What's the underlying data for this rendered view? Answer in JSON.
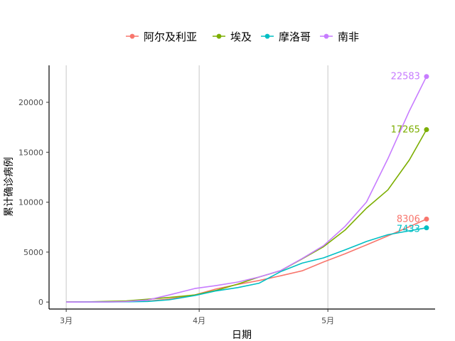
{
  "chart_data": {
    "type": "line",
    "xlabel": "日期",
    "ylabel": "累计确诊病例",
    "x_ticks": [
      "3月",
      "4月",
      "5月"
    ],
    "y_ticks": [
      0,
      5000,
      10000,
      15000,
      20000
    ],
    "ylim": [
      -700,
      23700
    ],
    "xlim": [
      "2020-02-26",
      "2020-05-26"
    ],
    "legend_position": "top",
    "grid": "vertical only",
    "x": [
      "2020-03-01",
      "2020-03-05",
      "2020-03-10",
      "2020-03-15",
      "2020-03-20",
      "2020-03-25",
      "2020-03-31",
      "2020-04-05",
      "2020-04-10",
      "2020-04-15",
      "2020-04-20",
      "2020-04-25",
      "2020-04-30",
      "2020-05-05",
      "2020-05-10",
      "2020-05-15",
      "2020-05-20",
      "2020-05-24"
    ],
    "series": [
      {
        "name": "阿尔及利亚",
        "color": "#F8766D",
        "values": [
          1,
          17,
          20,
          48,
          90,
          302,
          716,
          1320,
          1761,
          2160,
          2629,
          3127,
          4006,
          4838,
          5723,
          6629,
          7542,
          8306
        ],
        "end_label": "8306"
      },
      {
        "name": "埃及",
        "color": "#7CAE00",
        "values": [
          2,
          3,
          59,
          110,
          285,
          456,
          710,
          1173,
          1794,
          2505,
          3144,
          4319,
          5537,
          7201,
          9400,
          11228,
          14229,
          17265
        ],
        "end_label": "17265"
      },
      {
        "name": "摩洛哥",
        "color": "#00BFC4",
        "values": [
          0,
          1,
          2,
          28,
          63,
          225,
          654,
          1120,
          1448,
          1888,
          3046,
          3897,
          4423,
          5219,
          6063,
          6741,
          7133,
          7433
        ],
        "end_label": "7433"
      },
      {
        "name": "南非",
        "color": "#C77CFF",
        "values": [
          0,
          1,
          7,
          51,
          202,
          709,
          1353,
          1655,
          2003,
          2506,
          3158,
          4361,
          5647,
          7572,
          10015,
          14355,
          19137,
          22583
        ],
        "end_label": "22583"
      }
    ]
  }
}
